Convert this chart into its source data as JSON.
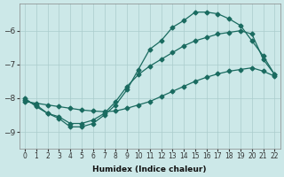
{
  "xlabel": "Humidex (Indice chaleur)",
  "background_color": "#cce8e8",
  "grid_color": "#aacccc",
  "line_color": "#1a6b60",
  "xlim": [
    -0.5,
    22.5
  ],
  "ylim": [
    -9.5,
    -5.2
  ],
  "yticks": [
    -9,
    -8,
    -7,
    -6
  ],
  "xticks": [
    0,
    1,
    2,
    3,
    4,
    5,
    6,
    7,
    8,
    9,
    10,
    11,
    12,
    13,
    14,
    15,
    16,
    17,
    18,
    19,
    20,
    21,
    22
  ],
  "curve1_x": [
    0,
    1,
    2,
    3,
    4,
    5,
    6,
    7,
    8,
    9,
    10,
    11,
    12,
    13,
    14,
    15,
    16,
    17,
    18,
    19,
    20,
    21,
    22
  ],
  "curve1_y": [
    -8.05,
    -8.2,
    -8.45,
    -8.55,
    -8.75,
    -8.75,
    -8.65,
    -8.45,
    -8.1,
    -7.65,
    -7.3,
    -7.05,
    -6.85,
    -6.65,
    -6.45,
    -6.3,
    -6.2,
    -6.1,
    -6.05,
    -6.0,
    -6.1,
    -6.85,
    -7.3
  ],
  "curve2_x": [
    0,
    1,
    2,
    3,
    4,
    5,
    6,
    7,
    8,
    9,
    10,
    11,
    12,
    13,
    14,
    15,
    16,
    17,
    18,
    19,
    20,
    21,
    22
  ],
  "curve2_y": [
    -8.1,
    -8.15,
    -8.2,
    -8.25,
    -8.3,
    -8.35,
    -8.38,
    -8.4,
    -8.38,
    -8.3,
    -8.2,
    -8.1,
    -7.95,
    -7.8,
    -7.65,
    -7.5,
    -7.38,
    -7.28,
    -7.2,
    -7.15,
    -7.1,
    -7.2,
    -7.35
  ],
  "curve3_x": [
    0,
    1,
    2,
    3,
    4,
    5,
    6,
    7,
    8,
    9,
    10,
    11,
    12,
    13,
    14,
    15,
    16,
    17,
    18,
    19,
    20,
    21,
    22
  ],
  "curve3_y": [
    -8.0,
    -8.25,
    -8.45,
    -8.6,
    -8.85,
    -8.85,
    -8.75,
    -8.5,
    -8.2,
    -7.75,
    -7.15,
    -6.55,
    -6.3,
    -5.9,
    -5.7,
    -5.45,
    -5.45,
    -5.5,
    -5.65,
    -5.85,
    -6.3,
    -6.75,
    -7.3
  ]
}
